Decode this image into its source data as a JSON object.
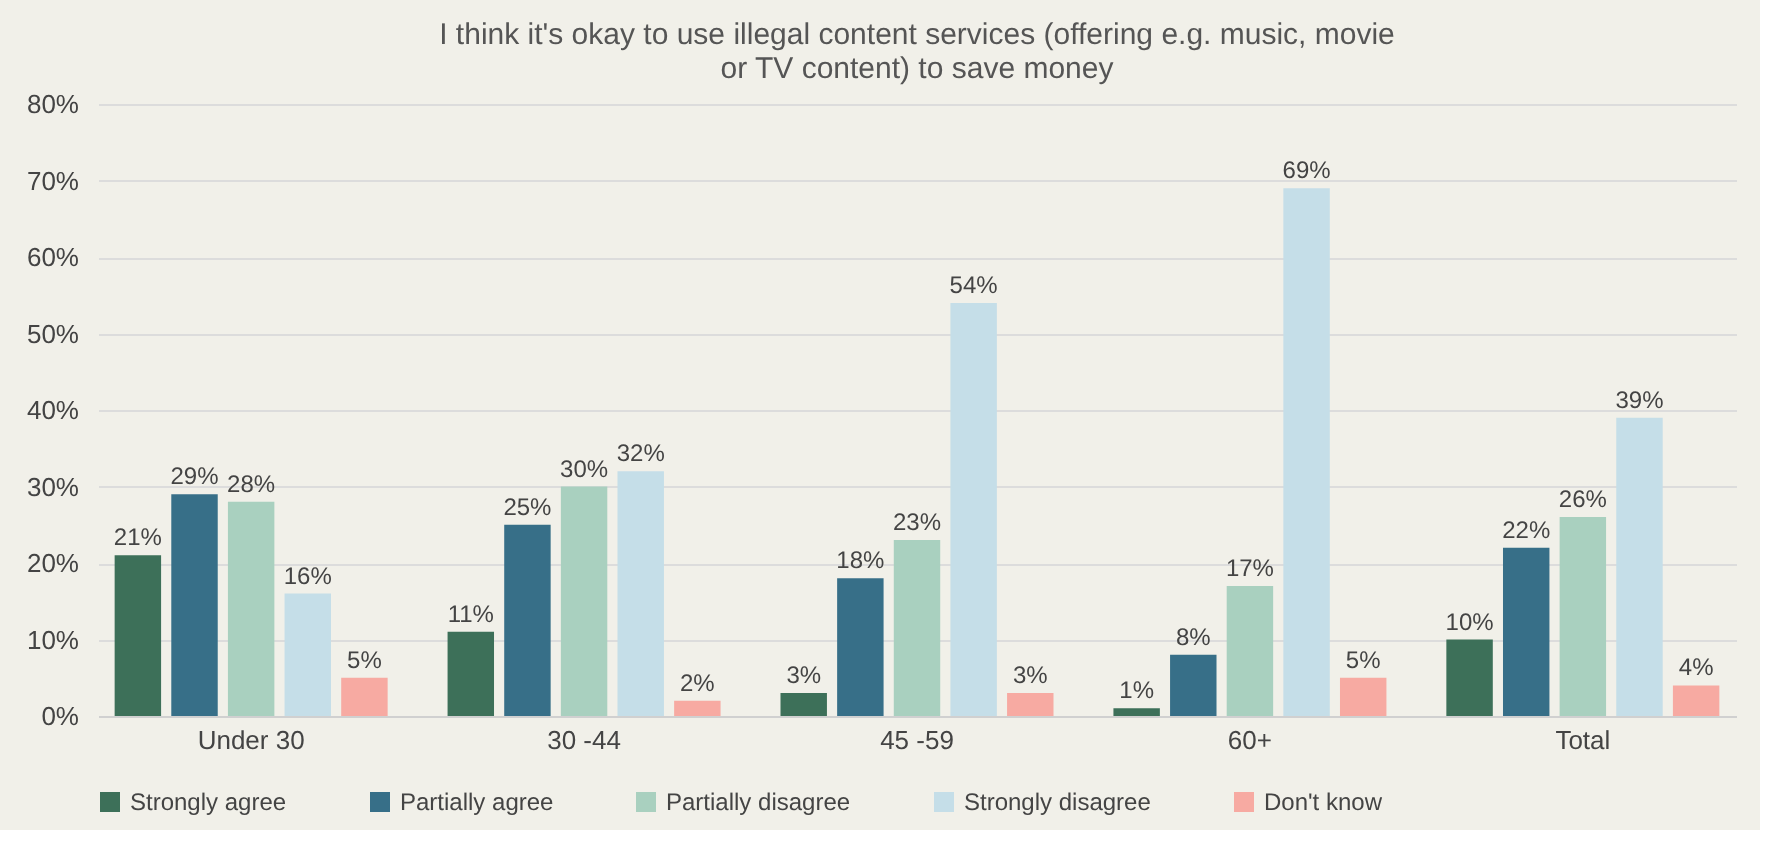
{
  "chart_data": {
    "type": "bar",
    "title": "I think it's okay to use illegal content services (offering e.g. music, movie or TV content) to save money",
    "categories": [
      "Under 30",
      "30 -44",
      "45 -59",
      "60+",
      "Total"
    ],
    "series": [
      {
        "name": "Strongly agree",
        "color": "#3d7059",
        "values": [
          21,
          11,
          3,
          1,
          10
        ],
        "value_labels": [
          "21%",
          "11%",
          "3%",
          "1%",
          "10%"
        ]
      },
      {
        "name": "Partially agree",
        "color": "#376f88",
        "values": [
          29,
          25,
          18,
          8,
          22
        ],
        "value_labels": [
          "29%",
          "25%",
          "18%",
          "8%",
          "22%"
        ]
      },
      {
        "name": "Partially disagree",
        "color": "#a9d0bf",
        "values": [
          28,
          30,
          23,
          17,
          26
        ],
        "value_labels": [
          "28%",
          "30%",
          "23%",
          "17%",
          "26%"
        ]
      },
      {
        "name": "Strongly disagree",
        "color": "#c5dee8",
        "values": [
          16,
          32,
          54,
          69,
          39
        ],
        "value_labels": [
          "16%",
          "32%",
          "54%",
          "69%",
          "39%"
        ]
      },
      {
        "name": "Don't know",
        "color": "#f7aaa2",
        "values": [
          5,
          2,
          3,
          5,
          4
        ],
        "value_labels": [
          "5%",
          "2%",
          "3%",
          "5%",
          "4%"
        ]
      }
    ],
    "ylim": [
      0,
      80
    ],
    "yticks": [
      {
        "value": 0,
        "label": "0%"
      },
      {
        "value": 10,
        "label": "10%"
      },
      {
        "value": 20,
        "label": "20%"
      },
      {
        "value": 30,
        "label": "30%"
      },
      {
        "value": 40,
        "label": "40%"
      },
      {
        "value": 50,
        "label": "50%"
      },
      {
        "value": 60,
        "label": "60%"
      },
      {
        "value": 70,
        "label": "70%"
      },
      {
        "value": 80,
        "label": "80%"
      }
    ],
    "grid": "y",
    "legend": "bottom"
  }
}
